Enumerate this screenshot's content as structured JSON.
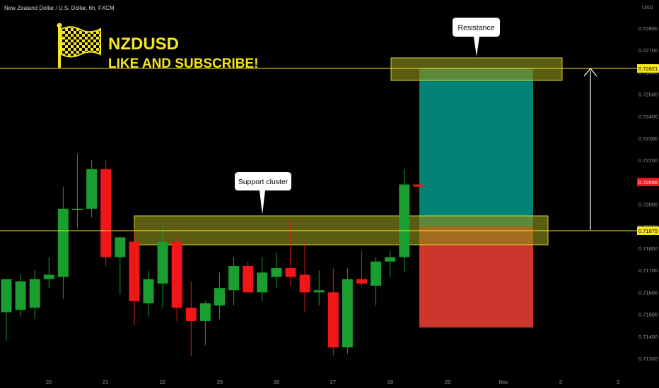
{
  "header": {
    "symbol_line": "New Zealand Dollar / U.S. Dollar, 6h, FXCM",
    "currency": "USD"
  },
  "branding": {
    "pair": "NZDUSD",
    "tagline": "LIKE AND SUBSCRIBE!",
    "flag": "checkered-flag-icon",
    "color": "#f5e61e"
  },
  "colors": {
    "up": "#1a9e2f",
    "down": "#f0171b",
    "zone_fill": "#8c8c1a",
    "zone_stroke": "#d6d62a",
    "line": "#f7e81d",
    "profit": "#008a7a",
    "stop": "#d8392f"
  },
  "chart_data": {
    "type": "candlestick",
    "ylim": [
      0.7125,
      0.729
    ],
    "price_ticks": [
      0.713,
      0.714,
      0.715,
      0.716,
      0.717,
      0.718,
      0.719,
      0.72,
      0.721,
      0.722,
      0.723,
      0.724,
      0.725,
      0.726,
      0.727,
      0.728
    ],
    "price_tick_labels": [
      "0.71300",
      "0.71400",
      "0.71500",
      "0.71600",
      "0.71700",
      "0.71800",
      "0.71900",
      "0.72000",
      "0.72100",
      "0.72200",
      "0.72300",
      "0.72400",
      "0.72500",
      "0.72600",
      "0.72700",
      "0.72800"
    ],
    "date_labels": [
      "20",
      "21",
      "22",
      "25",
      "26",
      "27",
      "28",
      "29",
      "Nov",
      "2",
      "3"
    ],
    "candles": [
      {
        "o": 0.7151,
        "h": 0.7166,
        "l": 0.7138,
        "c": 0.7166
      },
      {
        "o": 0.7152,
        "h": 0.7168,
        "l": 0.7149,
        "c": 0.7165
      },
      {
        "o": 0.7153,
        "h": 0.717,
        "l": 0.7148,
        "c": 0.7166
      },
      {
        "o": 0.7166,
        "h": 0.7176,
        "l": 0.7162,
        "c": 0.7168
      },
      {
        "o": 0.7167,
        "h": 0.7208,
        "l": 0.7157,
        "c": 0.7198
      },
      {
        "o": 0.7198,
        "h": 0.7223,
        "l": 0.7189,
        "c": 0.7198
      },
      {
        "o": 0.7198,
        "h": 0.722,
        "l": 0.7194,
        "c": 0.7216
      },
      {
        "o": 0.7216,
        "h": 0.722,
        "l": 0.7172,
        "c": 0.7176
      },
      {
        "o": 0.7176,
        "h": 0.7185,
        "l": 0.7159,
        "c": 0.7185
      },
      {
        "o": 0.7183,
        "h": 0.7189,
        "l": 0.7145,
        "c": 0.7156
      },
      {
        "o": 0.7155,
        "h": 0.717,
        "l": 0.7149,
        "c": 0.7166
      },
      {
        "o": 0.7164,
        "h": 0.719,
        "l": 0.7153,
        "c": 0.7183
      },
      {
        "o": 0.7183,
        "h": 0.7186,
        "l": 0.7147,
        "c": 0.7153
      },
      {
        "o": 0.7153,
        "h": 0.7165,
        "l": 0.7131,
        "c": 0.7147
      },
      {
        "o": 0.7147,
        "h": 0.7156,
        "l": 0.7136,
        "c": 0.7155
      },
      {
        "o": 0.7154,
        "h": 0.7169,
        "l": 0.7148,
        "c": 0.7162
      },
      {
        "o": 0.7161,
        "h": 0.7176,
        "l": 0.7154,
        "c": 0.7172
      },
      {
        "o": 0.7172,
        "h": 0.7174,
        "l": 0.7161,
        "c": 0.716
      },
      {
        "o": 0.716,
        "h": 0.7176,
        "l": 0.7156,
        "c": 0.7169
      },
      {
        "o": 0.7167,
        "h": 0.7178,
        "l": 0.7162,
        "c": 0.7171
      },
      {
        "o": 0.7171,
        "h": 0.7193,
        "l": 0.7163,
        "c": 0.7167
      },
      {
        "o": 0.7168,
        "h": 0.7183,
        "l": 0.7151,
        "c": 0.716
      },
      {
        "o": 0.716,
        "h": 0.717,
        "l": 0.7154,
        "c": 0.7161
      },
      {
        "o": 0.716,
        "h": 0.7171,
        "l": 0.7131,
        "c": 0.7135
      },
      {
        "o": 0.7135,
        "h": 0.7171,
        "l": 0.7132,
        "c": 0.7166
      },
      {
        "o": 0.7166,
        "h": 0.7179,
        "l": 0.7163,
        "c": 0.7164
      },
      {
        "o": 0.7163,
        "h": 0.7176,
        "l": 0.7154,
        "c": 0.7174
      },
      {
        "o": 0.7174,
        "h": 0.7179,
        "l": 0.7167,
        "c": 0.7176
      },
      {
        "o": 0.7176,
        "h": 0.7216,
        "l": 0.7169,
        "c": 0.7209
      },
      {
        "o": 0.7209,
        "h": 0.7209,
        "l": 0.7208,
        "c": 0.7208
      }
    ],
    "horizontal_lines": [
      {
        "price": 0.72621,
        "label": "0.72621"
      },
      {
        "price": 0.71875,
        "label": "0.71875"
      }
    ],
    "current_price": {
      "price": 0.72098,
      "label": "0.72098"
    },
    "zones": [
      {
        "name": "Resistance",
        "price_low": 0.726,
        "price_high": 0.7265
      },
      {
        "name": "Support cluster",
        "price_low": 0.7183,
        "price_high": 0.7194
      }
    ],
    "position": {
      "entry": 0.719,
      "target": 0.7262,
      "stop": 0.7144
    }
  }
}
